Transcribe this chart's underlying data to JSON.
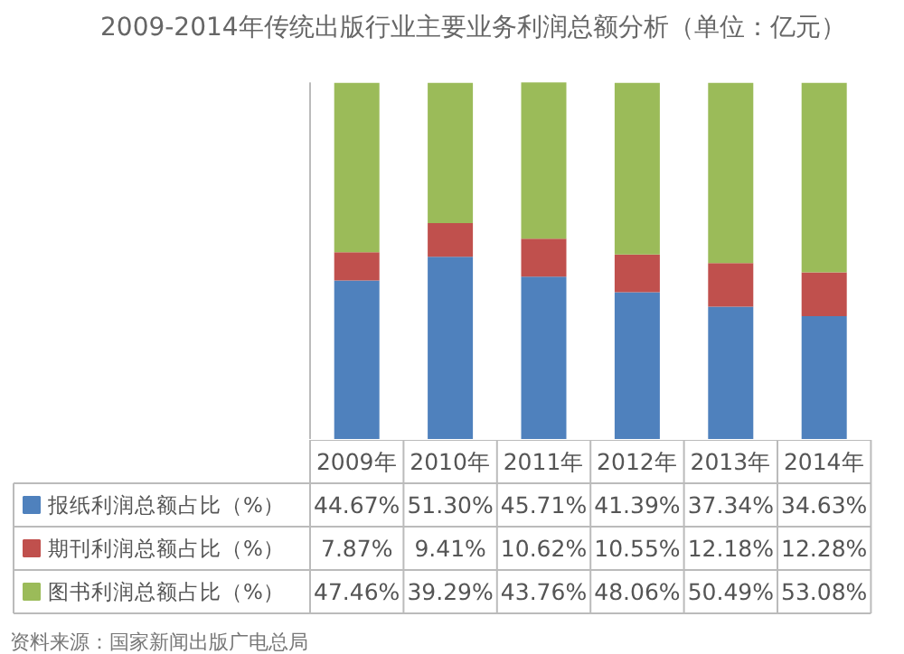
{
  "chart_data": {
    "type": "bar",
    "title": "2009-2014年传统出版行业主要业务利润总额分析（单位：亿元）",
    "stacked": true,
    "legend": "bottom left",
    "categories": [
      "2009年",
      "2010年",
      "2011年",
      "2012年",
      "2013年",
      "2014年"
    ],
    "series": [
      {
        "name": "报纸利润总额占比（%）",
        "color": "#4f81bd",
        "values": [
          44.67,
          51.3,
          45.71,
          41.39,
          37.34,
          34.63
        ],
        "value_labels": [
          "44.67%",
          "51.30%",
          "45.71%",
          "41.39%",
          "37.34%",
          "34.63%"
        ]
      },
      {
        "name": "期刊利润总额占比（%）",
        "color": "#c0504d",
        "values": [
          7.87,
          9.41,
          10.62,
          10.55,
          12.18,
          12.28
        ],
        "value_labels": [
          "7.87%",
          "9.41%",
          "10.62%",
          "10.55%",
          "12.18%",
          "12.28%"
        ]
      },
      {
        "name": "图书利润总额占比（%）",
        "color": "#9bbb59",
        "values": [
          47.46,
          39.29,
          43.76,
          48.06,
          50.49,
          53.08
        ],
        "value_labels": [
          "47.46%",
          "39.29%",
          "43.76%",
          "48.06%",
          "50.49%",
          "53.08%"
        ]
      }
    ],
    "annotations": [
      "资料来源：国家新闻出版广电总局"
    ]
  }
}
